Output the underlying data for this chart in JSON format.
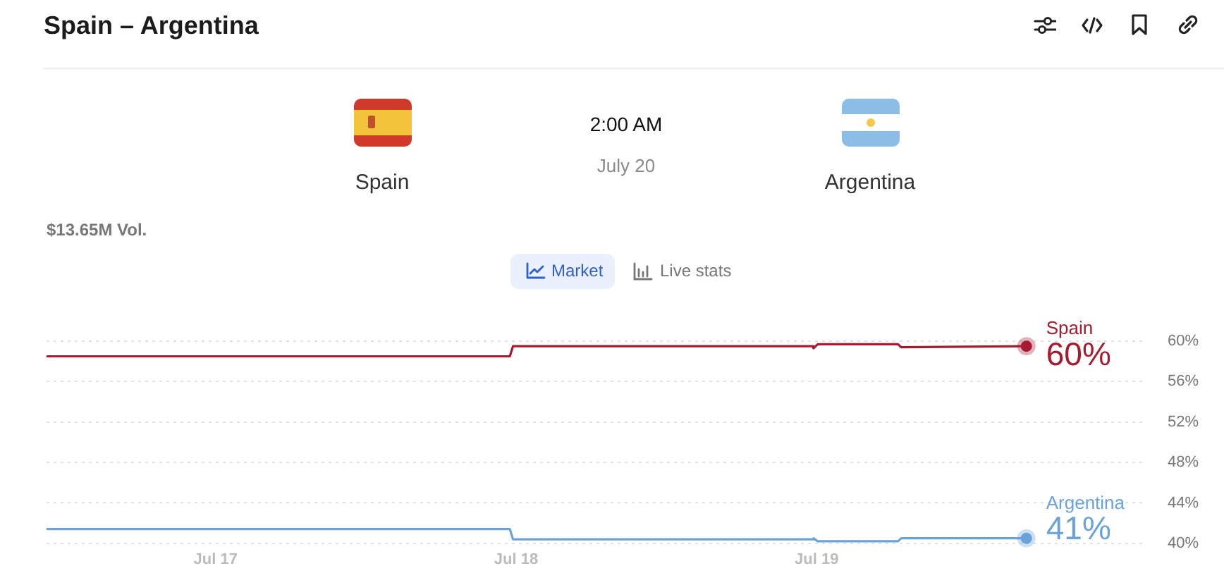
{
  "chart_data": {
    "type": "line",
    "title": "Spain – Argentina",
    "annotations": [
      "2:00 AM",
      "July 20",
      "Spain",
      "Argentina",
      "$13.65M Vol.",
      "Market",
      "Live stats"
    ],
    "x": [
      "--07-16T10:30",
      "--07-17T23:30",
      "--07-17T23:45",
      "--07-18T23:40",
      "--07-18T23:45",
      "--07-19T00:05",
      "--07-19T06:30",
      "--07-19T06:45",
      "--07-19T16:45"
    ],
    "xlim": [
      "--07-16T10:30",
      "--07-20T02:00"
    ],
    "xticks": [
      {
        "value": "--07-17",
        "label": "Jul 17"
      },
      {
        "value": "--07-18",
        "label": "Jul 18"
      },
      {
        "value": "--07-19",
        "label": "Jul 19"
      }
    ],
    "ylim": [
      40,
      60
    ],
    "yticks": [
      {
        "value": 40,
        "label": "40%"
      },
      {
        "value": 44,
        "label": "44%"
      },
      {
        "value": 48,
        "label": "48%"
      },
      {
        "value": 52,
        "label": "52%"
      },
      {
        "value": 56,
        "label": "56%"
      },
      {
        "value": 60,
        "label": "60%"
      }
    ],
    "grid": "y",
    "legend": false,
    "series": [
      {
        "name": "Spain",
        "color": "#a51c30",
        "values": [
          58.5,
          58.5,
          59.5,
          59.5,
          59.3,
          59.7,
          59.7,
          59.4,
          59.5
        ],
        "value_labels": [
          null,
          null,
          null,
          null,
          null,
          null,
          null,
          null,
          "60%"
        ]
      },
      {
        "name": "Argentina",
        "color": "#6aa3d8",
        "values": [
          41.4,
          41.4,
          40.4,
          40.4,
          40.5,
          40.2,
          40.2,
          40.5,
          40.5
        ],
        "value_labels": [
          null,
          null,
          null,
          null,
          null,
          null,
          null,
          null,
          "41%"
        ]
      }
    ]
  }
}
